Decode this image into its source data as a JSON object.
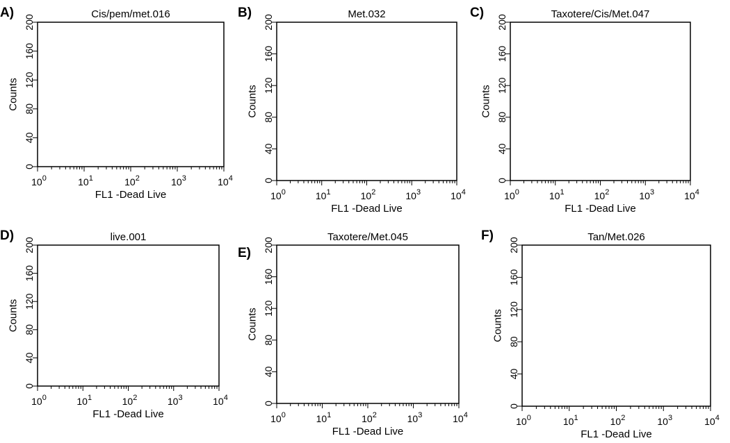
{
  "chart_data": [
    {
      "type": "histogram",
      "panel_label": "A)",
      "title": "Cis/pem/met.016",
      "xlabel": "FL1 -Dead Live",
      "ylabel": "Counts",
      "x_scale": "log",
      "xlim": [
        1,
        10000
      ],
      "ylim": [
        0,
        200
      ],
      "x_ticks": [
        {
          "base": "10",
          "exp": "0"
        },
        {
          "base": "10",
          "exp": "1"
        },
        {
          "base": "10",
          "exp": "2"
        },
        {
          "base": "10",
          "exp": "3"
        },
        {
          "base": "10",
          "exp": "4"
        }
      ],
      "y_ticks": [
        "0",
        "40",
        "80",
        "120",
        "160",
        "200"
      ],
      "series": []
    },
    {
      "type": "histogram",
      "panel_label": "B)",
      "title": "Met.032",
      "xlabel": "FL1 -Dead Live",
      "ylabel": "Counts",
      "x_scale": "log",
      "xlim": [
        1,
        10000
      ],
      "ylim": [
        0,
        200
      ],
      "x_ticks": [
        {
          "base": "10",
          "exp": "0"
        },
        {
          "base": "10",
          "exp": "1"
        },
        {
          "base": "10",
          "exp": "2"
        },
        {
          "base": "10",
          "exp": "3"
        },
        {
          "base": "10",
          "exp": "4"
        }
      ],
      "y_ticks": [
        "0",
        "40",
        "80",
        "120",
        "160",
        "200"
      ],
      "series": []
    },
    {
      "type": "histogram",
      "panel_label": "C)",
      "title": "Taxotere/Cis/Met.047",
      "xlabel": "FL1 -Dead Live",
      "ylabel": "Counts",
      "x_scale": "log",
      "xlim": [
        1,
        10000
      ],
      "ylim": [
        0,
        200
      ],
      "x_ticks": [
        {
          "base": "10",
          "exp": "0"
        },
        {
          "base": "10",
          "exp": "1"
        },
        {
          "base": "10",
          "exp": "2"
        },
        {
          "base": "10",
          "exp": "3"
        },
        {
          "base": "10",
          "exp": "4"
        }
      ],
      "y_ticks": [
        "0",
        "40",
        "80",
        "120",
        "160",
        "200"
      ],
      "series": []
    },
    {
      "type": "histogram",
      "panel_label": "D)",
      "title": "live.001",
      "xlabel": "FL1 -Dead Live",
      "ylabel": "Counts",
      "x_scale": "log",
      "xlim": [
        1,
        10000
      ],
      "ylim": [
        0,
        200
      ],
      "x_ticks": [
        {
          "base": "10",
          "exp": "0"
        },
        {
          "base": "10",
          "exp": "1"
        },
        {
          "base": "10",
          "exp": "2"
        },
        {
          "base": "10",
          "exp": "3"
        },
        {
          "base": "10",
          "exp": "4"
        }
      ],
      "y_ticks": [
        "0",
        "40",
        "80",
        "120",
        "160",
        "200"
      ],
      "series": []
    },
    {
      "type": "histogram",
      "panel_label": "E)",
      "title": "Taxotere/Met.045",
      "xlabel": "FL1 -Dead Live",
      "ylabel": "Counts",
      "x_scale": "log",
      "xlim": [
        1,
        10000
      ],
      "ylim": [
        0,
        200
      ],
      "x_ticks": [
        {
          "base": "10",
          "exp": "0"
        },
        {
          "base": "10",
          "exp": "1"
        },
        {
          "base": "10",
          "exp": "2"
        },
        {
          "base": "10",
          "exp": "3"
        },
        {
          "base": "10",
          "exp": "4"
        }
      ],
      "y_ticks": [
        "0",
        "40",
        "80",
        "120",
        "160",
        "200"
      ],
      "series": []
    },
    {
      "type": "histogram",
      "panel_label": "F)",
      "title": "Tan/Met.026",
      "xlabel": "FL1 -Dead Live",
      "ylabel": "Counts",
      "x_scale": "log",
      "xlim": [
        1,
        10000
      ],
      "ylim": [
        0,
        200
      ],
      "x_ticks": [
        {
          "base": "10",
          "exp": "0"
        },
        {
          "base": "10",
          "exp": "1"
        },
        {
          "base": "10",
          "exp": "2"
        },
        {
          "base": "10",
          "exp": "3"
        },
        {
          "base": "10",
          "exp": "4"
        }
      ],
      "y_ticks": [
        "0",
        "40",
        "80",
        "120",
        "160",
        "200"
      ],
      "series": []
    }
  ]
}
